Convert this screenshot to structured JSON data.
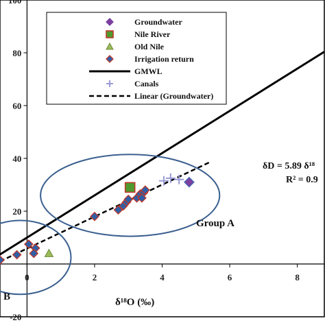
{
  "chart_data": {
    "type": "scatter",
    "xlabel": "δ¹⁸O (‰)",
    "ylabel": "",
    "xlim": [
      -0.8,
      8.8
    ],
    "ylim": [
      -20,
      100
    ],
    "x_ticks": [
      "0",
      "2",
      "4",
      "6",
      "8"
    ],
    "y_ticks": [
      "-20",
      "20",
      "40",
      "60",
      "80",
      "100"
    ],
    "grid": false,
    "legend_position": "top-center",
    "series": [
      {
        "name": "Groundwater",
        "kind": "points",
        "marker": "diamond",
        "color": "#7B3FA0",
        "points": [
          [
            4.8,
            31
          ]
        ]
      },
      {
        "name": "Nile River",
        "kind": "points",
        "marker": "square",
        "color": "#4E9A2E",
        "points": [
          [
            3.05,
            29
          ]
        ]
      },
      {
        "name": "Old Nile",
        "kind": "points",
        "marker": "triangle",
        "color": "#9BBB59",
        "points": [
          [
            0.65,
            4
          ]
        ]
      },
      {
        "name": "Irrigation return",
        "kind": "points",
        "marker": "diamond",
        "color": "#2F5FA6",
        "points": [
          [
            -0.8,
            1.5
          ],
          [
            -0.3,
            3.5
          ],
          [
            0.05,
            7.5
          ],
          [
            0.25,
            6
          ],
          [
            0.2,
            4
          ],
          [
            2.0,
            18
          ],
          [
            2.7,
            20.5
          ],
          [
            2.85,
            22
          ],
          [
            2.95,
            23.5
          ],
          [
            3.0,
            24.5
          ],
          [
            3.25,
            25
          ],
          [
            3.35,
            26.5
          ],
          [
            3.45,
            27
          ],
          [
            3.5,
            28
          ],
          [
            3.4,
            25
          ]
        ]
      },
      {
        "name": "GMWL",
        "kind": "line",
        "style": "solid",
        "color": "#000000",
        "line": [
          [
            -0.8,
            3.6
          ],
          [
            8.8,
            80.4
          ]
        ]
      },
      {
        "name": "Canals",
        "kind": "points",
        "marker": "plus",
        "color": "#9A9AD6",
        "points": [
          [
            4.05,
            31.5
          ],
          [
            4.25,
            32.5
          ],
          [
            4.5,
            32
          ]
        ]
      },
      {
        "name": "Linear (Groundwater)",
        "kind": "line",
        "style": "dashed",
        "color": "#000000",
        "line": [
          [
            -0.8,
            1.0
          ],
          [
            5.4,
            38.5
          ]
        ]
      }
    ],
    "ellipses": [
      {
        "cx": -0.2,
        "cy": 2.5,
        "rx": 1.5,
        "ry": 14
      },
      {
        "cx": 3.05,
        "cy": 26,
        "rx": 2.65,
        "ry": 15.5
      }
    ],
    "annotations": {
      "group_a": "Group A",
      "group_b": "B",
      "equation": "δD = 5.89 δ¹⁸",
      "r_squared": "R² = 0.9"
    }
  }
}
